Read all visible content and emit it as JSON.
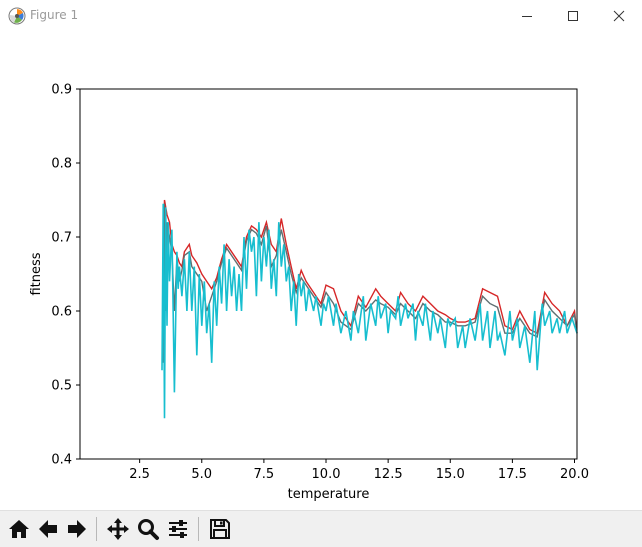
{
  "window": {
    "title": "Figure 1"
  },
  "toolbar": {
    "tools": [
      "home-icon",
      "back-icon",
      "forward-icon",
      "pan-icon",
      "zoom-icon",
      "configure-subplots-icon",
      "save-icon"
    ]
  },
  "colors": {
    "red_series": "#d62728",
    "gray_series": "#5f6f72",
    "cyan_series": "#17becf"
  },
  "chart_data": {
    "type": "line",
    "title": "",
    "xlabel": "temperature",
    "ylabel": "fitness",
    "xlim": [
      0.1,
      20.1
    ],
    "ylim": [
      0.4,
      0.9
    ],
    "xticks": [
      "2.5",
      "5.0",
      "7.5",
      "10.0",
      "12.5",
      "15.0",
      "17.5",
      "20.0"
    ],
    "yticks": [
      "0.4",
      "0.5",
      "0.6",
      "0.7",
      "0.8",
      "0.9"
    ],
    "grid": false,
    "legend": "none",
    "series": [
      {
        "color": "#d62728",
        "x": [
          3.45,
          3.5,
          3.6,
          3.7,
          3.8,
          3.9,
          4.0,
          4.1,
          4.2,
          4.3,
          4.5,
          4.6,
          4.8,
          5.0,
          5.2,
          5.4,
          5.6,
          5.8,
          6.0,
          6.2,
          6.4,
          6.6,
          6.8,
          7.0,
          7.2,
          7.4,
          7.6,
          7.8,
          8.0,
          8.2,
          8.4,
          8.6,
          8.8,
          9.0,
          9.2,
          9.5,
          9.8,
          10.0,
          10.3,
          10.6,
          11.0,
          11.3,
          11.6,
          12.0,
          12.2,
          12.5,
          12.8,
          13.0,
          13.3,
          13.6,
          13.9,
          14.2,
          14.5,
          14.8,
          15.0,
          15.3,
          15.6,
          16.0,
          16.3,
          16.6,
          16.9,
          17.2,
          17.5,
          17.8,
          18.2,
          18.5,
          18.8,
          19.1,
          19.4,
          19.7,
          20.0,
          20.1
        ],
        "y": [
          0.69,
          0.75,
          0.73,
          0.72,
          0.69,
          0.68,
          0.675,
          0.665,
          0.66,
          0.68,
          0.69,
          0.675,
          0.665,
          0.65,
          0.64,
          0.63,
          0.645,
          0.67,
          0.69,
          0.68,
          0.67,
          0.66,
          0.7,
          0.715,
          0.71,
          0.7,
          0.72,
          0.69,
          0.68,
          0.725,
          0.69,
          0.66,
          0.63,
          0.655,
          0.64,
          0.625,
          0.61,
          0.635,
          0.63,
          0.6,
          0.58,
          0.62,
          0.605,
          0.63,
          0.62,
          0.61,
          0.6,
          0.625,
          0.61,
          0.6,
          0.62,
          0.61,
          0.6,
          0.595,
          0.59,
          0.585,
          0.585,
          0.59,
          0.63,
          0.625,
          0.62,
          0.58,
          0.575,
          0.6,
          0.575,
          0.57,
          0.625,
          0.61,
          0.6,
          0.58,
          0.6,
          0.57
        ]
      },
      {
        "color": "#5f6f72",
        "x": [
          3.45,
          3.5,
          3.55,
          3.6,
          3.7,
          3.8,
          3.9,
          4.0,
          4.1,
          4.2,
          4.3,
          4.5,
          4.6,
          4.8,
          5.0,
          5.2,
          5.4,
          5.6,
          5.8,
          6.0,
          6.2,
          6.4,
          6.6,
          6.8,
          7.0,
          7.2,
          7.4,
          7.6,
          7.8,
          8.0,
          8.2,
          8.4,
          8.6,
          8.8,
          9.0,
          9.2,
          9.5,
          9.8,
          10.0,
          10.3,
          10.6,
          11.0,
          11.3,
          11.6,
          12.0,
          12.2,
          12.5,
          12.8,
          13.0,
          13.3,
          13.6,
          13.9,
          14.2,
          14.5,
          14.8,
          15.0,
          15.3,
          15.6,
          16.0,
          16.3,
          16.6,
          16.9,
          17.2,
          17.5,
          17.8,
          18.2,
          18.5,
          18.8,
          19.1,
          19.4,
          19.7,
          20.0,
          20.1
        ],
        "y": [
          0.53,
          0.745,
          0.6,
          0.72,
          0.7,
          0.68,
          0.6,
          0.67,
          0.64,
          0.655,
          0.675,
          0.68,
          0.66,
          0.65,
          0.64,
          0.6,
          0.62,
          0.64,
          0.665,
          0.685,
          0.675,
          0.665,
          0.655,
          0.695,
          0.71,
          0.705,
          0.69,
          0.715,
          0.66,
          0.675,
          0.71,
          0.68,
          0.65,
          0.625,
          0.645,
          0.635,
          0.62,
          0.605,
          0.625,
          0.61,
          0.585,
          0.575,
          0.61,
          0.6,
          0.615,
          0.61,
          0.605,
          0.595,
          0.61,
          0.6,
          0.59,
          0.61,
          0.6,
          0.595,
          0.585,
          0.585,
          0.58,
          0.58,
          0.585,
          0.62,
          0.61,
          0.605,
          0.57,
          0.57,
          0.59,
          0.57,
          0.565,
          0.615,
          0.6,
          0.59,
          0.58,
          0.595,
          0.57
        ]
      },
      {
        "color": "#17becf",
        "x": [
          3.4,
          3.45,
          3.5,
          3.55,
          3.6,
          3.65,
          3.7,
          3.8,
          3.9,
          4.0,
          4.05,
          4.1,
          4.2,
          4.3,
          4.4,
          4.5,
          4.6,
          4.7,
          4.8,
          4.9,
          5.0,
          5.1,
          5.2,
          5.3,
          5.4,
          5.5,
          5.6,
          5.7,
          5.8,
          5.9,
          6.0,
          6.1,
          6.2,
          6.3,
          6.4,
          6.5,
          6.6,
          6.7,
          6.8,
          6.9,
          7.0,
          7.1,
          7.2,
          7.3,
          7.4,
          7.5,
          7.6,
          7.7,
          7.8,
          7.9,
          8.0,
          8.1,
          8.2,
          8.3,
          8.4,
          8.5,
          8.6,
          8.7,
          8.8,
          8.9,
          9.0,
          9.1,
          9.2,
          9.3,
          9.5,
          9.6,
          9.8,
          9.9,
          10.0,
          10.1,
          10.3,
          10.4,
          10.6,
          10.8,
          11.0,
          11.1,
          11.3,
          11.5,
          11.6,
          11.8,
          12.0,
          12.1,
          12.2,
          12.4,
          12.5,
          12.6,
          12.8,
          12.9,
          13.0,
          13.2,
          13.3,
          13.5,
          13.6,
          13.7,
          13.9,
          14.0,
          14.2,
          14.3,
          14.5,
          14.6,
          14.8,
          14.9,
          15.0,
          15.2,
          15.3,
          15.5,
          15.6,
          15.8,
          16.0,
          16.2,
          16.3,
          16.5,
          16.6,
          16.8,
          16.9,
          17.0,
          17.2,
          17.4,
          17.5,
          17.7,
          17.8,
          18.0,
          18.2,
          18.4,
          18.5,
          18.7,
          18.8,
          19.0,
          19.1,
          19.3,
          19.4,
          19.6,
          19.7,
          19.9,
          20.0,
          20.1
        ],
        "y": [
          0.52,
          0.745,
          0.455,
          0.74,
          0.58,
          0.72,
          0.64,
          0.71,
          0.49,
          0.68,
          0.63,
          0.66,
          0.62,
          0.67,
          0.6,
          0.68,
          0.6,
          0.66,
          0.54,
          0.65,
          0.58,
          0.64,
          0.57,
          0.61,
          0.53,
          0.64,
          0.58,
          0.66,
          0.61,
          0.69,
          0.6,
          0.67,
          0.62,
          0.66,
          0.6,
          0.65,
          0.6,
          0.7,
          0.63,
          0.71,
          0.68,
          0.7,
          0.62,
          0.72,
          0.64,
          0.7,
          0.66,
          0.71,
          0.63,
          0.67,
          0.62,
          0.72,
          0.66,
          0.69,
          0.64,
          0.66,
          0.6,
          0.64,
          0.58,
          0.65,
          0.62,
          0.64,
          0.6,
          0.63,
          0.6,
          0.62,
          0.58,
          0.61,
          0.6,
          0.62,
          0.58,
          0.61,
          0.57,
          0.6,
          0.56,
          0.6,
          0.57,
          0.62,
          0.56,
          0.61,
          0.58,
          0.62,
          0.59,
          0.61,
          0.57,
          0.6,
          0.59,
          0.62,
          0.58,
          0.61,
          0.59,
          0.61,
          0.56,
          0.6,
          0.58,
          0.61,
          0.56,
          0.6,
          0.57,
          0.59,
          0.55,
          0.59,
          0.58,
          0.59,
          0.55,
          0.58,
          0.55,
          0.59,
          0.56,
          0.61,
          0.56,
          0.6,
          0.55,
          0.6,
          0.56,
          0.57,
          0.54,
          0.6,
          0.56,
          0.59,
          0.55,
          0.58,
          0.53,
          0.6,
          0.52,
          0.61,
          0.58,
          0.6,
          0.57,
          0.59,
          0.57,
          0.6,
          0.57,
          0.59,
          0.58,
          0.57
        ]
      }
    ]
  }
}
